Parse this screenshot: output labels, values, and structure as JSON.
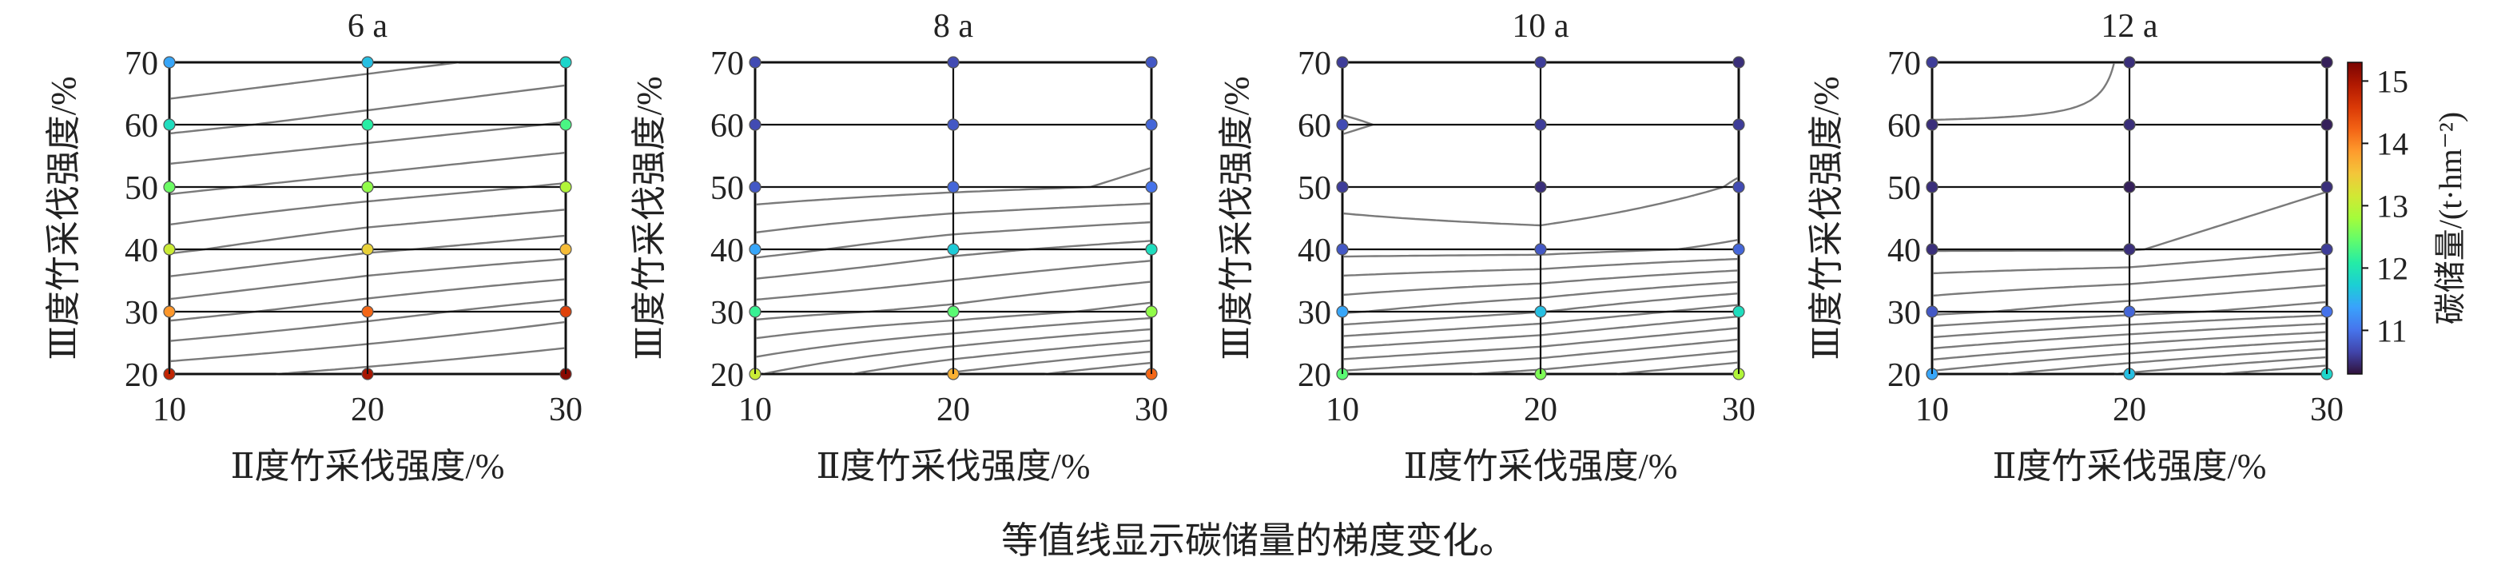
{
  "caption": "等值线显示碳储量的梯度变化。",
  "colorbar": {
    "label": "碳储量/(t·hm⁻²)",
    "range": [
      10.3,
      15.3
    ],
    "ticks": [
      11,
      12,
      13,
      14,
      15
    ],
    "colormap": [
      "#30123b",
      "#4145ab",
      "#4675ed",
      "#39a2fc",
      "#1bcfd4",
      "#24eca6",
      "#61fc6c",
      "#a4fc3b",
      "#d1e834",
      "#f3c63a",
      "#fe9b2d",
      "#f36315",
      "#d93806",
      "#b11901",
      "#7a0402"
    ]
  },
  "chart_data": [
    {
      "type": "contour",
      "title": "6 a",
      "xlabel": "Ⅱ度竹采伐强度/%",
      "ylabel": "Ⅲ度竹采伐强度/%",
      "x": [
        10,
        20,
        30
      ],
      "y": [
        20,
        30,
        40,
        50,
        60,
        70
      ],
      "xlim": [
        10,
        30
      ],
      "ylim": [
        20,
        70
      ],
      "xticks": [
        10,
        20,
        30
      ],
      "yticks": [
        20,
        30,
        40,
        50,
        60,
        70
      ],
      "grid": true,
      "z": [
        [
          14.8,
          15.0,
          15.2
        ],
        [
          13.9,
          14.2,
          14.5
        ],
        [
          13.1,
          13.4,
          13.6
        ],
        [
          12.5,
          12.7,
          12.9
        ],
        [
          11.9,
          12.1,
          12.3
        ],
        [
          11.4,
          11.6,
          11.8
        ]
      ]
    },
    {
      "type": "contour",
      "title": "8 a",
      "xlabel": "Ⅱ度竹采伐强度/%",
      "ylabel": "Ⅲ度竹采伐强度/%",
      "x": [
        10,
        20,
        30
      ],
      "y": [
        20,
        30,
        40,
        50,
        60,
        70
      ],
      "xlim": [
        10,
        30
      ],
      "ylim": [
        20,
        70
      ],
      "xticks": [
        10,
        20,
        30
      ],
      "yticks": [
        20,
        30,
        40,
        50,
        60,
        70
      ],
      "grid": true,
      "z": [
        [
          13.1,
          13.7,
          14.2
        ],
        [
          12.2,
          12.4,
          12.7
        ],
        [
          11.4,
          11.7,
          11.9
        ],
        [
          10.8,
          10.9,
          11.0
        ],
        [
          10.7,
          10.8,
          10.9
        ],
        [
          10.7,
          10.7,
          10.8
        ]
      ]
    },
    {
      "type": "contour",
      "title": "10 a",
      "xlabel": "Ⅱ度竹采伐强度/%",
      "ylabel": "Ⅲ度竹采伐强度/%",
      "x": [
        10,
        20,
        30
      ],
      "y": [
        20,
        30,
        40,
        50,
        60,
        70
      ],
      "xlim": [
        10,
        30
      ],
      "ylim": [
        20,
        70
      ],
      "xticks": [
        10,
        20,
        30
      ],
      "yticks": [
        20,
        30,
        40,
        50,
        60,
        70
      ],
      "grid": true,
      "z": [
        [
          12.4,
          12.6,
          12.9
        ],
        [
          11.4,
          11.6,
          11.9
        ],
        [
          10.8,
          10.8,
          10.9
        ],
        [
          10.6,
          10.5,
          10.7
        ],
        [
          10.7,
          10.6,
          10.6
        ],
        [
          10.6,
          10.6,
          10.5
        ]
      ]
    },
    {
      "type": "contour",
      "title": "12 a",
      "xlabel": "Ⅱ度竹采伐强度/%",
      "ylabel": "Ⅲ度竹采伐强度/%",
      "x": [
        10,
        20,
        30
      ],
      "y": [
        20,
        30,
        40,
        50,
        60,
        70
      ],
      "xlim": [
        10,
        30
      ],
      "ylim": [
        20,
        70
      ],
      "xticks": [
        10,
        20,
        30
      ],
      "yticks": [
        20,
        30,
        40,
        50,
        60,
        70
      ],
      "grid": true,
      "z": [
        [
          11.4,
          11.6,
          11.8
        ],
        [
          10.8,
          10.9,
          11.0
        ],
        [
          10.5,
          10.5,
          10.6
        ],
        [
          10.5,
          10.4,
          10.5
        ],
        [
          10.5,
          10.5,
          10.4
        ],
        [
          10.6,
          10.5,
          10.4
        ]
      ]
    }
  ]
}
